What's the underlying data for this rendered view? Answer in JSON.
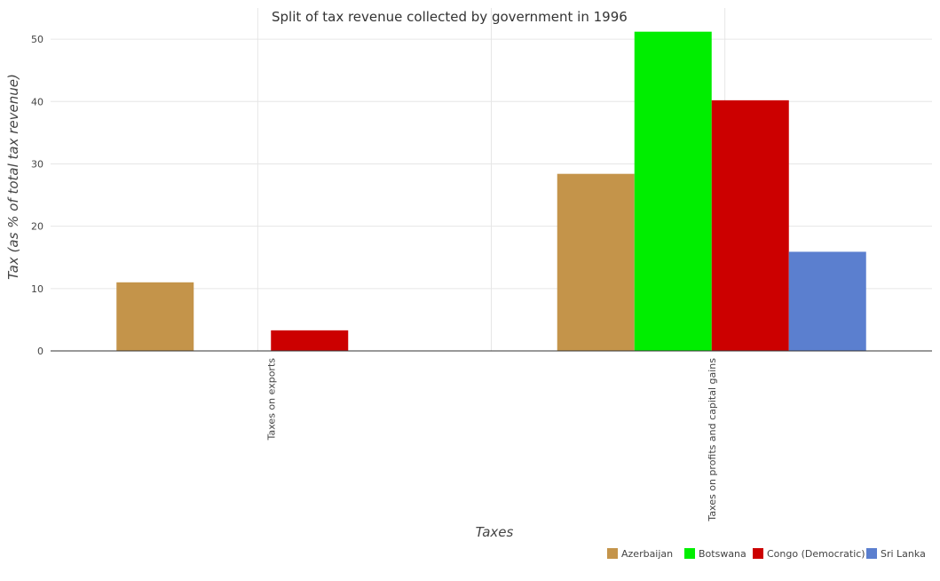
{
  "chart_data": {
    "type": "bar",
    "title": "Split of tax revenue collected by government in 1996",
    "xlabel": "Taxes",
    "ylabel": "Tax (as % of total tax revenue)",
    "categories": [
      "Taxes on exports",
      "Taxes on profits and capital gains"
    ],
    "series": [
      {
        "name": "Azerbaijan",
        "color": "#c4944a",
        "values": [
          11.0,
          28.4
        ]
      },
      {
        "name": "Botswana",
        "color": "#00ee00",
        "values": [
          0.0,
          51.2
        ]
      },
      {
        "name": "Congo (Democratic)",
        "color": "#cc0000",
        "values": [
          3.3,
          40.2
        ]
      },
      {
        "name": "Sri Lanka",
        "color": "#5b7fcf",
        "values": [
          0.0,
          15.9
        ]
      }
    ],
    "ylim": [
      0,
      55
    ],
    "yticks": [
      0,
      10,
      20,
      30,
      40,
      50
    ],
    "grid": true,
    "legend_position": "bottom-right"
  }
}
